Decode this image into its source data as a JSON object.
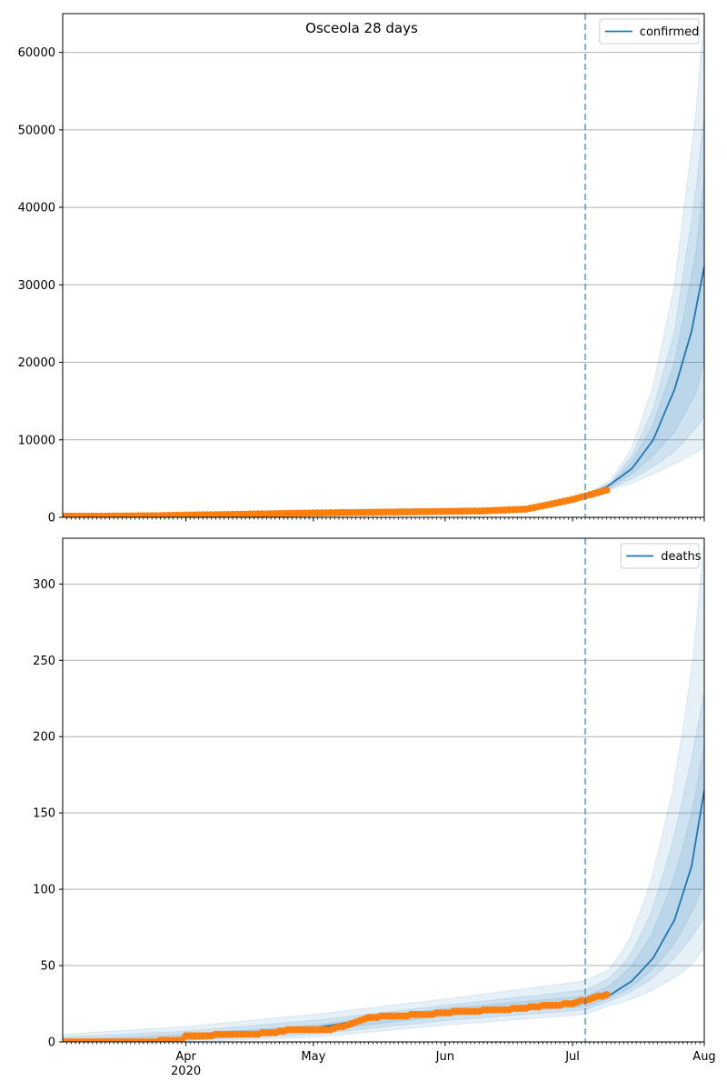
{
  "chart_data": [
    {
      "type": "line",
      "title": "Osceola 28 days",
      "x_axis": {
        "type": "date",
        "range": [
          "2020-03-03",
          "2020-08-01"
        ],
        "tick_labels": [
          {
            "date": "2020-04-01",
            "label": "Apr",
            "sublabel": "2020"
          },
          {
            "date": "2020-05-01",
            "label": "May"
          },
          {
            "date": "2020-06-01",
            "label": "Jun"
          },
          {
            "date": "2020-07-01",
            "label": "Jul"
          },
          {
            "date": "2020-08-01",
            "label": "Aug"
          }
        ],
        "tick_labels_shown": false
      },
      "ylim": [
        0,
        65000
      ],
      "yticks": [
        0,
        10000,
        20000,
        30000,
        40000,
        50000,
        60000
      ],
      "grid": "horizontal",
      "legend": {
        "placement": "top-right",
        "entries": [
          "confirmed"
        ]
      },
      "forecast_start": "2020-07-04",
      "colors": {
        "model": "#1f77b4",
        "observed": "#ff7f0e",
        "band": "#1f77b4"
      },
      "series": [
        {
          "name": "confirmed",
          "kind": "model-line",
          "points": [
            [
              "2020-03-03",
              150
            ],
            [
              "2020-04-01",
              300
            ],
            [
              "2020-05-01",
              550
            ],
            [
              "2020-06-01",
              750
            ],
            [
              "2020-06-20",
              1200
            ],
            [
              "2020-07-01",
              2400
            ],
            [
              "2020-07-04",
              2900
            ],
            [
              "2020-07-09",
              3900
            ],
            [
              "2020-07-15",
              6300
            ],
            [
              "2020-07-20",
              10000
            ],
            [
              "2020-07-25",
              16500
            ],
            [
              "2020-07-29",
              24000
            ],
            [
              "2020-08-01",
              32400
            ]
          ]
        },
        {
          "name": "observed",
          "kind": "markers",
          "points": [
            [
              "2020-03-03",
              150
            ],
            [
              "2020-03-15",
              160
            ],
            [
              "2020-03-25",
              200
            ],
            [
              "2020-04-01",
              280
            ],
            [
              "2020-04-10",
              350
            ],
            [
              "2020-04-20",
              450
            ],
            [
              "2020-05-01",
              550
            ],
            [
              "2020-05-10",
              620
            ],
            [
              "2020-05-20",
              680
            ],
            [
              "2020-06-01",
              760
            ],
            [
              "2020-06-10",
              820
            ],
            [
              "2020-06-20",
              1050
            ],
            [
              "2020-06-25",
              1600
            ],
            [
              "2020-07-01",
              2300
            ],
            [
              "2020-07-05",
              2900
            ],
            [
              "2020-07-09",
              3500
            ]
          ]
        }
      ],
      "bands": [
        {
          "upper": [
            [
              "2020-07-04",
              2900
            ],
            [
              "2020-07-10",
              4800
            ],
            [
              "2020-07-15",
              9000
            ],
            [
              "2020-07-20",
              17000
            ],
            [
              "2020-07-25",
              30000
            ],
            [
              "2020-07-30",
              52000
            ],
            [
              "2020-08-01",
              65000
            ]
          ],
          "lower": [
            [
              "2020-07-04",
              2900
            ],
            [
              "2020-07-10",
              3600
            ],
            [
              "2020-07-15",
              4400
            ],
            [
              "2020-07-20",
              5600
            ],
            [
              "2020-07-25",
              6900
            ],
            [
              "2020-07-30",
              8300
            ],
            [
              "2020-08-01",
              9000
            ]
          ]
        },
        {
          "upper": [
            [
              "2020-07-04",
              2900
            ],
            [
              "2020-07-10",
              4500
            ],
            [
              "2020-07-15",
              8000
            ],
            [
              "2020-07-20",
              14000
            ],
            [
              "2020-07-25",
              24000
            ],
            [
              "2020-07-30",
              42000
            ],
            [
              "2020-08-01",
              52000
            ]
          ],
          "lower": [
            [
              "2020-07-04",
              2900
            ],
            [
              "2020-07-10",
              3700
            ],
            [
              "2020-07-15",
              5000
            ],
            [
              "2020-07-20",
              6500
            ],
            [
              "2020-07-25",
              8500
            ],
            [
              "2020-07-30",
              11500
            ],
            [
              "2020-08-01",
              13000
            ]
          ]
        },
        {
          "upper": [
            [
              "2020-07-04",
              2900
            ],
            [
              "2020-07-10",
              4300
            ],
            [
              "2020-07-15",
              7200
            ],
            [
              "2020-07-20",
              12000
            ],
            [
              "2020-07-25",
              20000
            ],
            [
              "2020-07-30",
              34000
            ],
            [
              "2020-08-01",
              44000
            ]
          ],
          "lower": [
            [
              "2020-07-04",
              2900
            ],
            [
              "2020-07-10",
              3900
            ],
            [
              "2020-07-15",
              5600
            ],
            [
              "2020-07-20",
              8000
            ],
            [
              "2020-07-25",
              11000
            ],
            [
              "2020-07-30",
              16000
            ],
            [
              "2020-08-01",
              20000
            ]
          ]
        }
      ]
    },
    {
      "type": "line",
      "title": "",
      "x_axis": {
        "type": "date",
        "range": [
          "2020-03-03",
          "2020-08-01"
        ],
        "tick_labels": [
          {
            "date": "2020-04-01",
            "label": "Apr",
            "sublabel": "2020"
          },
          {
            "date": "2020-05-01",
            "label": "May"
          },
          {
            "date": "2020-06-01",
            "label": "Jun"
          },
          {
            "date": "2020-07-01",
            "label": "Jul"
          },
          {
            "date": "2020-08-01",
            "label": "Aug"
          }
        ],
        "tick_labels_shown": true
      },
      "ylim": [
        0,
        330
      ],
      "yticks": [
        0,
        50,
        100,
        150,
        200,
        250,
        300
      ],
      "grid": "horizontal",
      "legend": {
        "placement": "top-right",
        "entries": [
          "deaths"
        ]
      },
      "forecast_start": "2020-07-04",
      "colors": {
        "model": "#1f77b4",
        "observed": "#ff7f0e",
        "band": "#1f77b4"
      },
      "series": [
        {
          "name": "deaths",
          "kind": "model-line",
          "points": [
            [
              "2020-03-03",
              0
            ],
            [
              "2020-03-20",
              0.5
            ],
            [
              "2020-04-01",
              3
            ],
            [
              "2020-04-15",
              5
            ],
            [
              "2020-04-25",
              7
            ],
            [
              "2020-05-01",
              9
            ],
            [
              "2020-05-10",
              13
            ],
            [
              "2020-05-20",
              17
            ],
            [
              "2020-06-01",
              20
            ],
            [
              "2020-06-15",
              22
            ],
            [
              "2020-07-01",
              25
            ],
            [
              "2020-07-04",
              26
            ],
            [
              "2020-07-10",
              31
            ],
            [
              "2020-07-15",
              40
            ],
            [
              "2020-07-20",
              55
            ],
            [
              "2020-07-25",
              80
            ],
            [
              "2020-07-29",
              115
            ],
            [
              "2020-08-01",
              165
            ]
          ]
        },
        {
          "name": "observed",
          "kind": "markers",
          "points": [
            [
              "2020-03-03",
              0
            ],
            [
              "2020-03-20",
              0
            ],
            [
              "2020-03-31",
              1
            ],
            [
              "2020-04-01",
              4
            ],
            [
              "2020-04-15",
              5
            ],
            [
              "2020-04-22",
              6
            ],
            [
              "2020-04-26",
              8
            ],
            [
              "2020-05-05",
              8
            ],
            [
              "2020-05-10",
              12
            ],
            [
              "2020-05-14",
              16
            ],
            [
              "2020-05-20",
              17
            ],
            [
              "2020-05-28",
              18
            ],
            [
              "2020-06-01",
              19
            ],
            [
              "2020-06-05",
              20
            ],
            [
              "2020-06-15",
              21
            ],
            [
              "2020-06-22",
              23
            ],
            [
              "2020-06-26",
              24
            ],
            [
              "2020-07-01",
              25
            ],
            [
              "2020-07-05",
              28
            ],
            [
              "2020-07-09",
              31
            ]
          ]
        }
      ],
      "bands": [
        {
          "upper": [
            [
              "2020-03-03",
              5
            ],
            [
              "2020-04-01",
              10
            ],
            [
              "2020-05-01",
              18
            ],
            [
              "2020-06-01",
              28
            ],
            [
              "2020-07-04",
              40
            ],
            [
              "2020-07-10",
              48
            ],
            [
              "2020-07-15",
              70
            ],
            [
              "2020-07-20",
              110
            ],
            [
              "2020-07-25",
              170
            ],
            [
              "2020-07-29",
              240
            ],
            [
              "2020-08-01",
              330
            ]
          ],
          "lower": [
            [
              "2020-03-03",
              0
            ],
            [
              "2020-04-01",
              0
            ],
            [
              "2020-05-01",
              3
            ],
            [
              "2020-06-01",
              11
            ],
            [
              "2020-07-04",
              18
            ],
            [
              "2020-07-10",
              24
            ],
            [
              "2020-07-15",
              28
            ],
            [
              "2020-07-20",
              34
            ],
            [
              "2020-07-25",
              42
            ],
            [
              "2020-07-29",
              50
            ],
            [
              "2020-08-01",
              62
            ]
          ]
        },
        {
          "upper": [
            [
              "2020-03-03",
              3
            ],
            [
              "2020-04-01",
              7
            ],
            [
              "2020-05-01",
              14
            ],
            [
              "2020-06-01",
              24
            ],
            [
              "2020-07-04",
              34
            ],
            [
              "2020-07-10",
              42
            ],
            [
              "2020-07-15",
              58
            ],
            [
              "2020-07-20",
              88
            ],
            [
              "2020-07-25",
              135
            ],
            [
              "2020-07-29",
              185
            ],
            [
              "2020-08-01",
              230
            ]
          ],
          "lower": [
            [
              "2020-03-03",
              0
            ],
            [
              "2020-04-01",
              1
            ],
            [
              "2020-05-01",
              5
            ],
            [
              "2020-06-01",
              14
            ],
            [
              "2020-07-04",
              21
            ],
            [
              "2020-07-10",
              27
            ],
            [
              "2020-07-15",
              33
            ],
            [
              "2020-07-20",
              42
            ],
            [
              "2020-07-25",
              55
            ],
            [
              "2020-07-29",
              68
            ],
            [
              "2020-08-01",
              82
            ]
          ]
        },
        {
          "upper": [
            [
              "2020-03-03",
              1
            ],
            [
              "2020-04-01",
              5
            ],
            [
              "2020-05-01",
              11
            ],
            [
              "2020-06-01",
              22
            ],
            [
              "2020-07-04",
              30
            ],
            [
              "2020-07-10",
              37
            ],
            [
              "2020-07-15",
              50
            ],
            [
              "2020-07-20",
              72
            ],
            [
              "2020-07-25",
              108
            ],
            [
              "2020-07-29",
              148
            ],
            [
              "2020-08-01",
              195
            ]
          ],
          "lower": [
            [
              "2020-03-03",
              0
            ],
            [
              "2020-04-01",
              1
            ],
            [
              "2020-05-01",
              7
            ],
            [
              "2020-06-01",
              17
            ],
            [
              "2020-07-04",
              23
            ],
            [
              "2020-07-10",
              29
            ],
            [
              "2020-07-15",
              36
            ],
            [
              "2020-07-20",
              48
            ],
            [
              "2020-07-25",
              64
            ],
            [
              "2020-07-29",
              84
            ],
            [
              "2020-08-01",
              105
            ]
          ]
        }
      ]
    }
  ]
}
